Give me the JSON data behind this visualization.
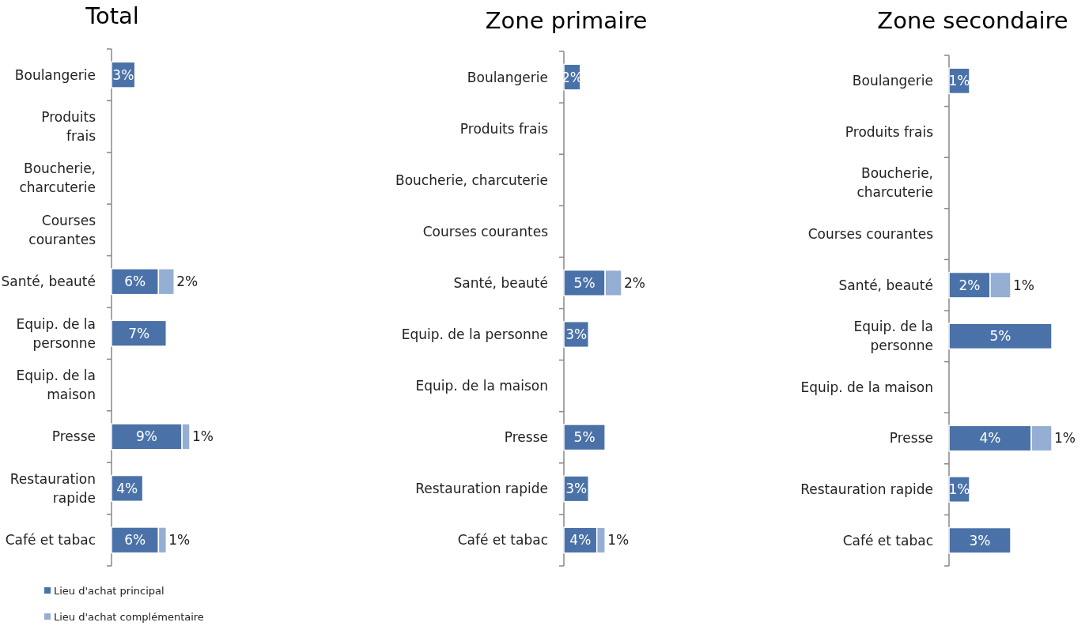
{
  "chart_data": [
    {
      "type": "bar",
      "orientation": "horizontal",
      "stacked": true,
      "title": "Total",
      "categories": [
        "Boulangerie",
        "Produits frais",
        "Boucherie, charcuterie",
        "Courses courantes",
        "Santé, beauté",
        "Equip. de la personne",
        "Equip. de la maison",
        "Presse",
        "Restauration rapide",
        "Café et tabac"
      ],
      "tick_labels": "y",
      "legend": "bottom left",
      "series": [
        {
          "name": "Lieu d'achat principal",
          "color": "#4a72a8",
          "values": [
            3,
            null,
            null,
            null,
            6,
            7,
            null,
            9,
            4,
            6
          ],
          "value_labels": [
            "3%",
            null,
            null,
            null,
            "6%",
            "7%",
            null,
            "9%",
            "4%",
            "6%"
          ]
        },
        {
          "name": "Lieu d'achat complémentaire",
          "color": "#95aed3",
          "values": [
            null,
            null,
            null,
            null,
            2,
            null,
            null,
            1,
            null,
            1
          ],
          "value_labels": [
            null,
            null,
            null,
            null,
            "2%",
            null,
            null,
            "1%",
            null,
            "1%"
          ]
        }
      ]
    },
    {
      "type": "bar",
      "orientation": "horizontal",
      "stacked": true,
      "title": "Zone primaire",
      "categories": [
        "Boulangerie",
        "Produits frais",
        "Boucherie, charcuterie",
        "Courses courantes",
        "Santé, beauté",
        "Equip. de la personne",
        "Equip. de la maison",
        "Presse",
        "Restauration rapide",
        "Café et tabac"
      ],
      "tick_labels": "y",
      "series": [
        {
          "color": "#4a72a8",
          "values": [
            2,
            null,
            null,
            null,
            5,
            3,
            null,
            5,
            3,
            4
          ],
          "value_labels": [
            "2%",
            null,
            null,
            null,
            "5%",
            "3%",
            null,
            "5%",
            "3%",
            "4%"
          ]
        },
        {
          "color": "#95aed3",
          "values": [
            null,
            null,
            null,
            null,
            2,
            null,
            null,
            null,
            null,
            1
          ],
          "value_labels": [
            null,
            null,
            null,
            null,
            "2%",
            null,
            null,
            null,
            null,
            "1%"
          ]
        }
      ]
    },
    {
      "type": "bar",
      "orientation": "horizontal",
      "stacked": true,
      "title": "Zone secondaire",
      "categories": [
        "Boulangerie",
        "Produits frais",
        "Boucherie, charcuterie",
        "Courses courantes",
        "Santé, beauté",
        "Equip. de la personne",
        "Equip. de la maison",
        "Presse",
        "Restauration rapide",
        "Café et tabac"
      ],
      "tick_labels": "y",
      "series": [
        {
          "color": "#4a72a8",
          "values": [
            1,
            null,
            null,
            null,
            2,
            5,
            null,
            4,
            1,
            3
          ],
          "value_labels": [
            "1%",
            null,
            null,
            null,
            "2%",
            "5%",
            null,
            "4%",
            "1%",
            "3%"
          ]
        },
        {
          "color": "#95aed3",
          "values": [
            null,
            null,
            null,
            null,
            1,
            null,
            null,
            1,
            null,
            null
          ],
          "value_labels": [
            null,
            null,
            null,
            null,
            "1%",
            null,
            null,
            "1%",
            null,
            null
          ]
        }
      ]
    }
  ]
}
